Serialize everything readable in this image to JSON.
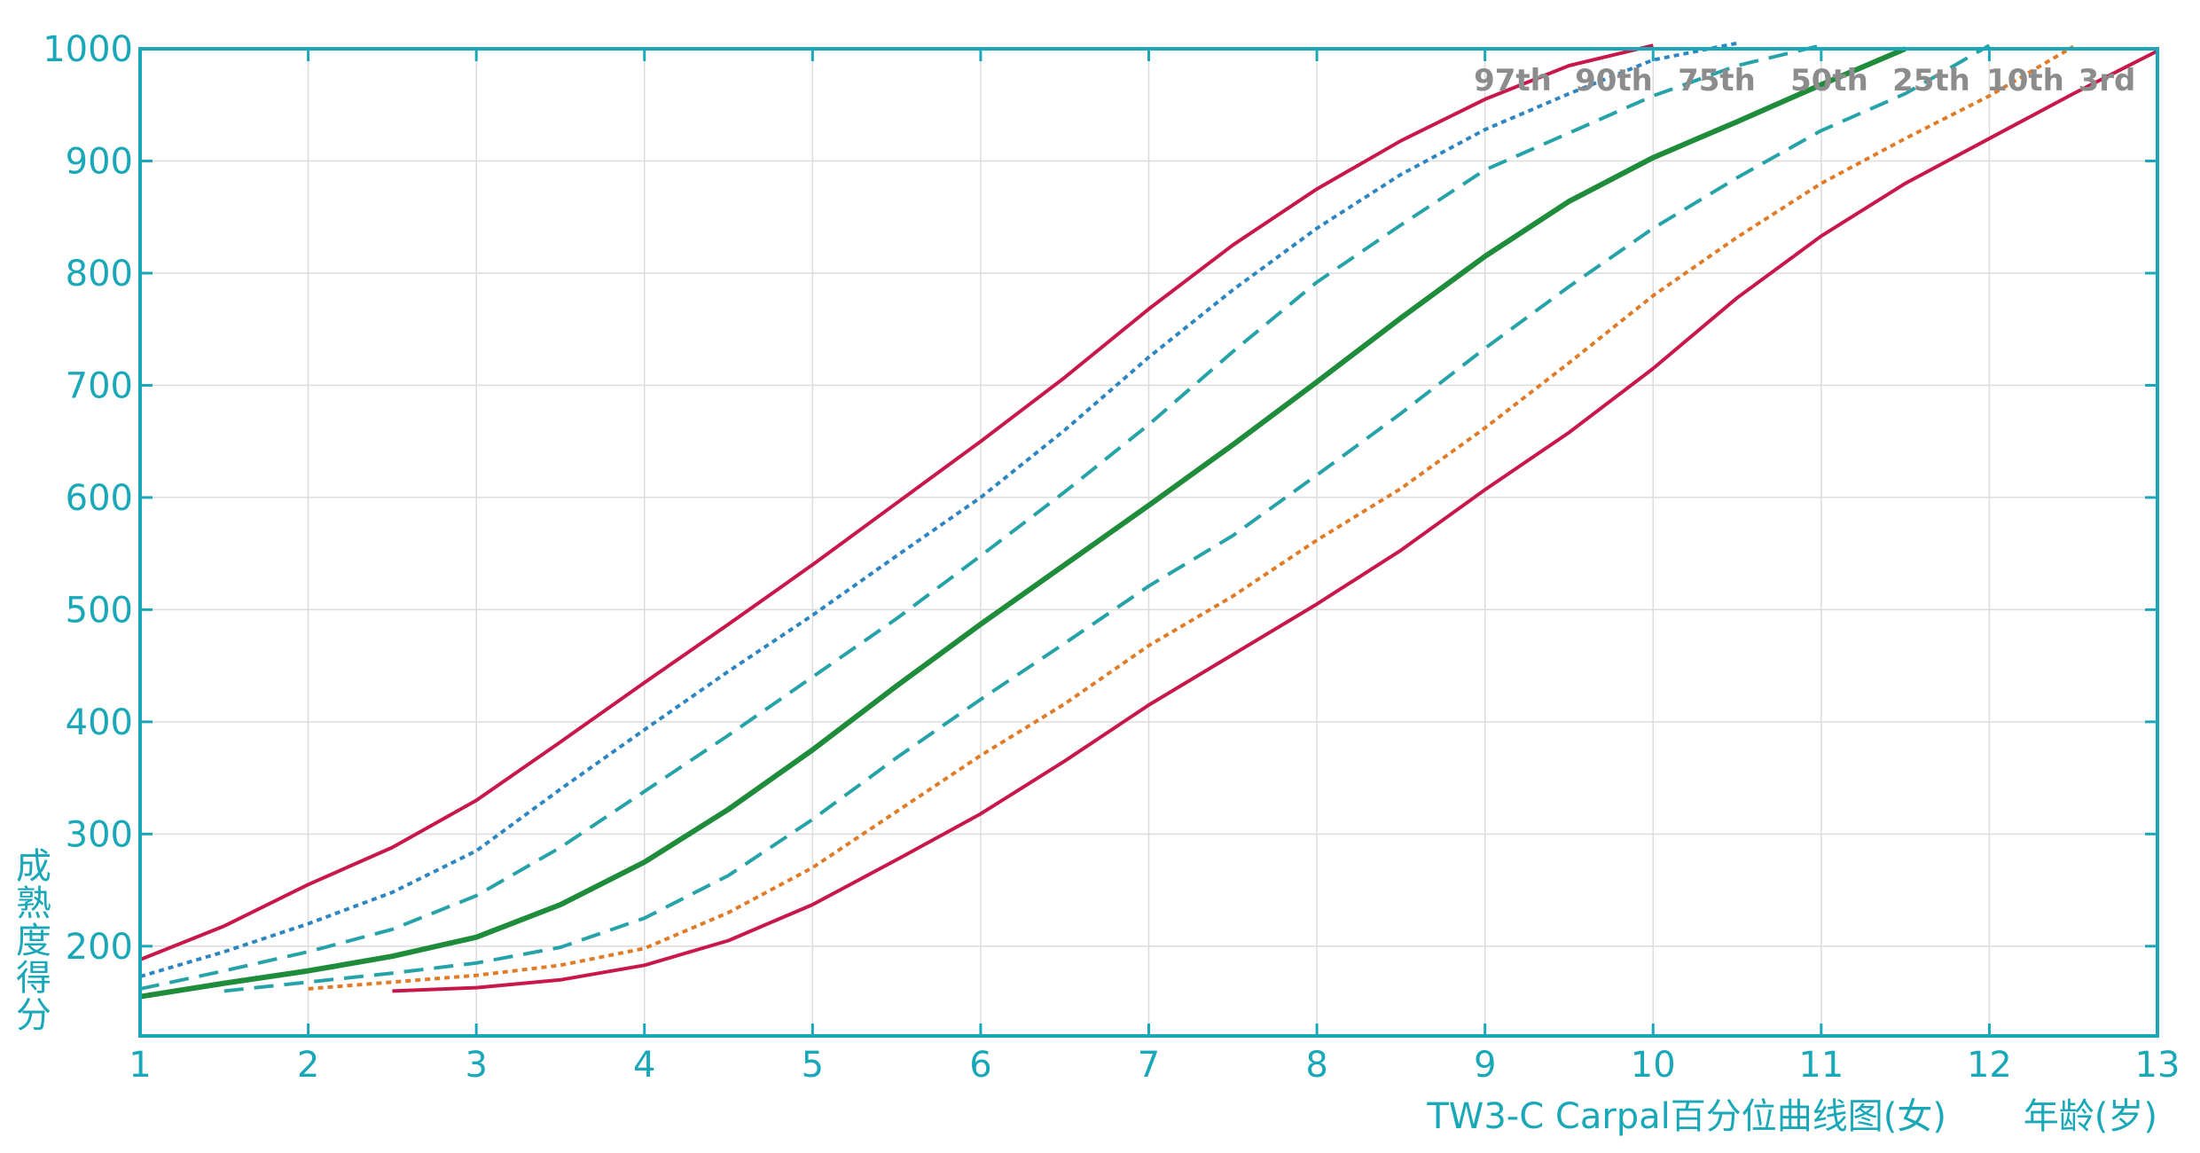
{
  "chart_data": {
    "type": "line",
    "caption": "TW3-C Carpal百分位曲线图(女)",
    "xlabel": "年龄(岁)",
    "ylabel": "成熟度得分",
    "xlim": [
      1,
      13
    ],
    "ylim": [
      120,
      1000
    ],
    "x_ticks": [
      "1",
      "2",
      "3",
      "4",
      "5",
      "6",
      "7",
      "8",
      "9",
      "10",
      "11",
      "12",
      "13"
    ],
    "y_ticks": [
      "200",
      "300",
      "400",
      "500",
      "600",
      "700",
      "800",
      "900",
      "1000"
    ],
    "grid": true,
    "colors": {
      "axis": "#1aa8b8",
      "grid": "#dcdcdc",
      "label": "#8c8c8c"
    },
    "series": [
      {
        "name": "97th",
        "color": "#c8174a",
        "dash": "solid",
        "width": 4,
        "x": [
          1,
          1.5,
          2,
          2.5,
          3,
          3.5,
          4,
          4.5,
          5,
          5.5,
          6,
          6.5,
          7,
          7.5,
          8,
          8.5,
          9,
          9.5,
          10
        ],
        "y": [
          188,
          218,
          255,
          288,
          330,
          382,
          435,
          487,
          540,
          595,
          650,
          707,
          768,
          825,
          875,
          918,
          955,
          985,
          1003
        ]
      },
      {
        "name": "90th",
        "color": "#2e86c1",
        "dash": "dotted",
        "width": 4,
        "x": [
          1,
          1.5,
          2,
          2.5,
          3,
          3.5,
          4,
          4.5,
          5,
          5.5,
          6,
          6.5,
          7,
          7.5,
          8,
          8.5,
          9,
          9.5,
          10,
          10.5
        ],
        "y": [
          173,
          195,
          220,
          248,
          285,
          340,
          393,
          445,
          495,
          548,
          600,
          660,
          725,
          785,
          840,
          888,
          928,
          960,
          990,
          1005
        ]
      },
      {
        "name": "75th",
        "color": "#26a3a8",
        "dash": "dashed",
        "width": 4,
        "x": [
          1,
          1.5,
          2,
          2.5,
          3,
          3.5,
          4,
          4.5,
          5,
          5.5,
          6,
          6.5,
          7,
          7.5,
          8,
          8.5,
          9,
          9.5,
          10,
          10.5,
          11
        ],
        "y": [
          162,
          178,
          195,
          215,
          245,
          288,
          338,
          388,
          440,
          492,
          548,
          605,
          665,
          730,
          792,
          843,
          892,
          925,
          958,
          985,
          1003
        ]
      },
      {
        "name": "50th",
        "color": "#1e8c3a",
        "dash": "solid",
        "width": 6,
        "x": [
          1,
          1.5,
          2,
          2.5,
          3,
          3.5,
          4,
          4.5,
          5,
          5.5,
          6,
          6.5,
          7,
          7.5,
          8,
          8.5,
          9,
          9.5,
          10,
          10.5,
          11,
          11.5
        ],
        "y": [
          155,
          167,
          178,
          191,
          208,
          237,
          275,
          322,
          375,
          432,
          487,
          540,
          593,
          647,
          703,
          760,
          815,
          864,
          903,
          935,
          968,
          1000
        ]
      },
      {
        "name": "25th",
        "color": "#26a3a8",
        "dash": "dashed",
        "width": 4,
        "x": [
          1.5,
          2,
          2.5,
          3,
          3.5,
          4,
          4.5,
          5,
          5.5,
          6,
          6.5,
          7,
          7.5,
          8,
          8.5,
          9,
          9.5,
          10,
          10.5,
          11,
          11.5,
          12
        ],
        "y": [
          160,
          168,
          176,
          185,
          199,
          225,
          263,
          313,
          368,
          420,
          470,
          521,
          566,
          620,
          675,
          733,
          788,
          840,
          885,
          927,
          960,
          1003
        ]
      },
      {
        "name": "10th",
        "color": "#e07b28",
        "dash": "dotted",
        "width": 4,
        "x": [
          2,
          2.5,
          3,
          3.5,
          4,
          4.5,
          5,
          5.5,
          6,
          6.5,
          7,
          7.5,
          8,
          8.5,
          9,
          9.5,
          10,
          10.5,
          11,
          11.5,
          12,
          12.5
        ],
        "y": [
          162,
          168,
          174,
          183,
          198,
          230,
          270,
          320,
          370,
          416,
          468,
          512,
          562,
          608,
          662,
          720,
          780,
          832,
          880,
          920,
          958,
          1002
        ]
      },
      {
        "name": "3rd",
        "color": "#c8174a",
        "dash": "solid",
        "width": 4,
        "x": [
          2.5,
          3,
          3.5,
          4,
          4.5,
          5,
          5.5,
          6,
          6.5,
          7,
          7.5,
          8,
          8.5,
          9,
          9.5,
          10,
          10.5,
          11,
          11.5,
          12,
          12.5,
          13
        ],
        "y": [
          160,
          163,
          170,
          183,
          205,
          237,
          277,
          318,
          365,
          415,
          460,
          505,
          553,
          607,
          658,
          715,
          778,
          833,
          880,
          920,
          960,
          998
        ]
      }
    ]
  }
}
